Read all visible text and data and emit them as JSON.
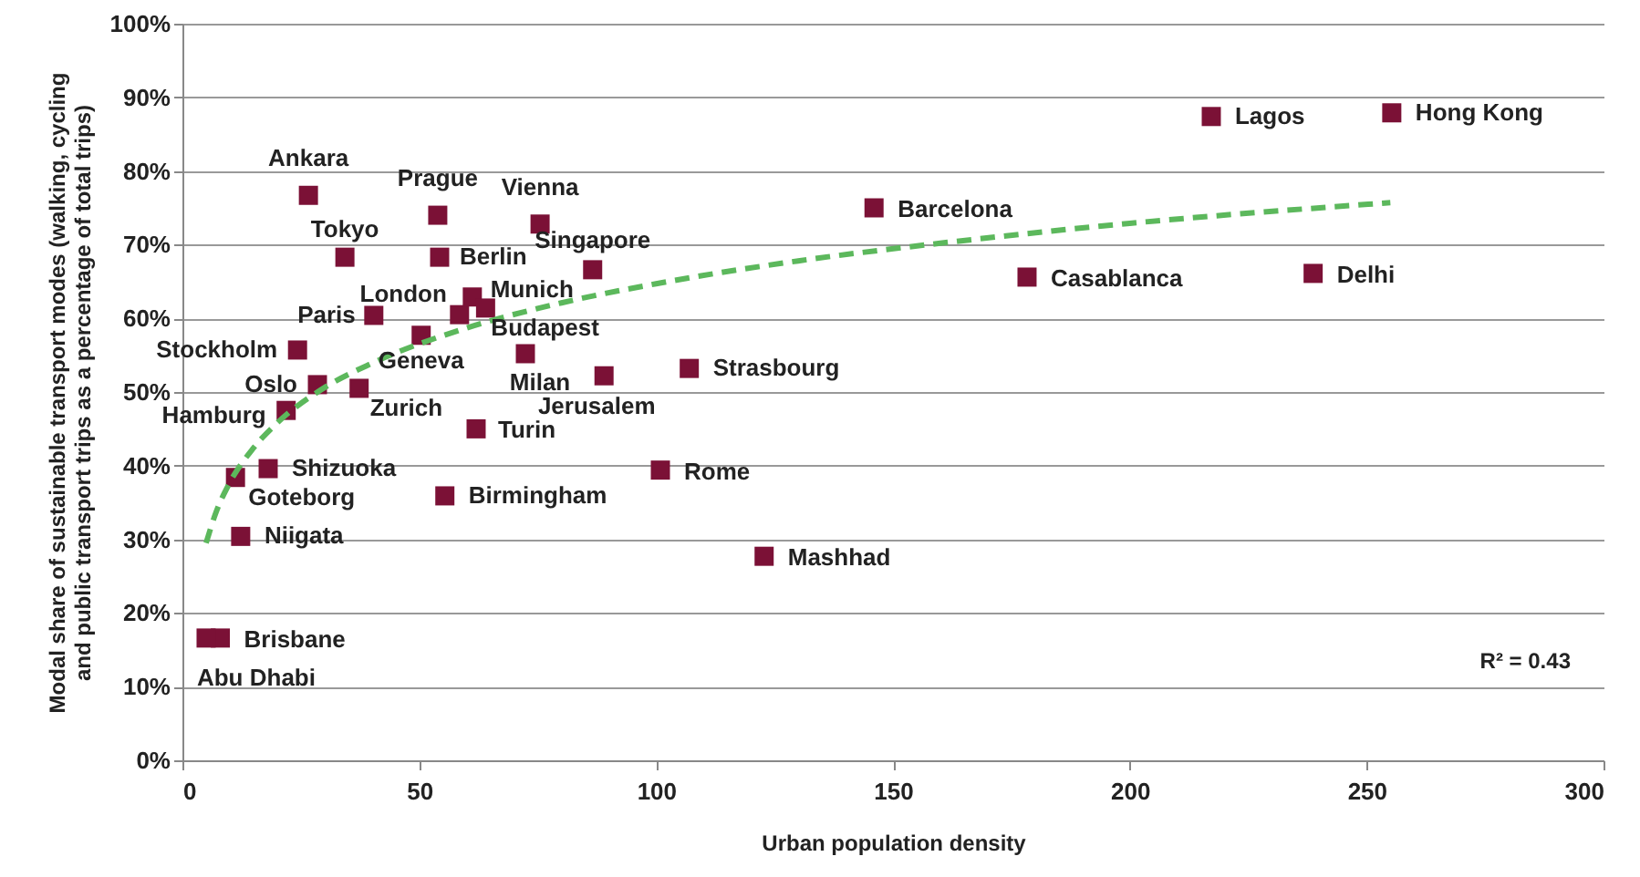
{
  "chart_data": {
    "type": "scatter",
    "xlabel": "Urban population density",
    "ylabel": "Modal share of sustainable transport modes (walking, cycling and public transport trips as a percentage of total trips)",
    "xlim": [
      0,
      300
    ],
    "xticks": [
      0,
      50,
      100,
      150,
      200,
      250,
      300
    ],
    "ylim": [
      0,
      100
    ],
    "yticks": [
      {
        "value": 0,
        "label": "0%"
      },
      {
        "value": 10,
        "label": "10%"
      },
      {
        "value": 20,
        "label": "20%"
      },
      {
        "value": 30,
        "label": "30%"
      },
      {
        "value": 40,
        "label": "40%"
      },
      {
        "value": 50,
        "label": "50%"
      },
      {
        "value": 60,
        "label": "60%"
      },
      {
        "value": 70,
        "label": "70%"
      },
      {
        "value": 80,
        "label": "80%"
      },
      {
        "value": 90,
        "label": "90%"
      },
      {
        "value": 100,
        "label": "100%"
      }
    ],
    "grid": "y",
    "series": [
      {
        "marker": "square",
        "color": "#7b1136",
        "x": [
          26.6,
          53.9,
          75.5,
          34.3,
          54.3,
          86.6,
          58.5,
          61.2,
          64.0,
          40.4,
          50.4,
          24.3,
          72.4,
          89.0,
          28.5,
          37.3,
          21.9,
          62.0,
          107.0,
          18.1,
          11.2,
          100.9,
          55.4,
          12.3,
          8.0,
          5.0,
          122.8,
          146.0,
          178.3,
          238.7,
          217.2,
          255.3
        ],
        "values": [
          76.7,
          74.0,
          72.8,
          68.3,
          68.3,
          66.6,
          60.5,
          62.9,
          61.4,
          60.4,
          57.7,
          55.7,
          55.2,
          52.2,
          51.0,
          50.5,
          47.5,
          45.0,
          53.2,
          39.6,
          38.4,
          39.4,
          35.9,
          30.4,
          16.6,
          16.6,
          27.7,
          75.0,
          65.6,
          66.1,
          87.4,
          87.9
        ]
      },
      {
        "type": "line",
        "line_style": "dashed",
        "color": "#5cb85c",
        "x": [
          5,
          7,
          10,
          15,
          20,
          30,
          40,
          60,
          80,
          100,
          130,
          160,
          200,
          255
        ],
        "values": [
          29.5,
          33.5,
          37.7,
          42.4,
          45.8,
          50.6,
          53.9,
          58.7,
          62.1,
          64.7,
          67.8,
          70.2,
          72.9,
          75.7
        ]
      }
    ],
    "annotations": [
      "R² = 0.43",
      {
        "text": "Ankara",
        "x": 26.6,
        "y": 76.7
      },
      {
        "text": "Prague",
        "x": 53.9,
        "y": 74.0
      },
      {
        "text": "Vienna",
        "x": 75.5,
        "y": 72.8
      },
      {
        "text": "Tokyo",
        "x": 34.3,
        "y": 68.3
      },
      {
        "text": "Berlin",
        "x": 54.3,
        "y": 68.3
      },
      {
        "text": "Singapore",
        "x": 86.6,
        "y": 66.6
      },
      {
        "text": "London",
        "x": 58.5,
        "y": 60.5
      },
      {
        "text": "Munich",
        "x": 61.2,
        "y": 62.9
      },
      {
        "text": "Budapest",
        "x": 64.0,
        "y": 61.4
      },
      {
        "text": "Paris",
        "x": 40.4,
        "y": 60.4
      },
      {
        "text": "Geneva",
        "x": 50.4,
        "y": 57.7
      },
      {
        "text": "Stockholm",
        "x": 24.3,
        "y": 55.7
      },
      {
        "text": "Milan",
        "x": 72.4,
        "y": 55.2
      },
      {
        "text": "Jerusalem",
        "x": 89.0,
        "y": 52.2
      },
      {
        "text": "Oslo",
        "x": 28.5,
        "y": 51.0
      },
      {
        "text": "Zurich",
        "x": 37.3,
        "y": 50.5
      },
      {
        "text": "Hamburg",
        "x": 21.9,
        "y": 47.5
      },
      {
        "text": "Turin",
        "x": 62.0,
        "y": 45.0
      },
      {
        "text": "Strasbourg",
        "x": 107.0,
        "y": 53.2
      },
      {
        "text": "Shizuoka",
        "x": 18.1,
        "y": 39.6
      },
      {
        "text": "Goteborg",
        "x": 11.2,
        "y": 38.4
      },
      {
        "text": "Rome",
        "x": 100.9,
        "y": 39.4
      },
      {
        "text": "Birmingham",
        "x": 55.4,
        "y": 35.9
      },
      {
        "text": "Niigata",
        "x": 12.3,
        "y": 30.4
      },
      {
        "text": "Brisbane",
        "x": 8.0,
        "y": 16.6
      },
      {
        "text": "Abu Dhabi",
        "x": 5.0,
        "y": 16.6
      },
      {
        "text": "Mashhad",
        "x": 122.8,
        "y": 27.7
      },
      {
        "text": "Barcelona",
        "x": 146.0,
        "y": 75.0
      },
      {
        "text": "Casablanca",
        "x": 178.3,
        "y": 65.6
      },
      {
        "text": "Delhi",
        "x": 238.7,
        "y": 66.1
      },
      {
        "text": "Lagos",
        "x": 217.2,
        "y": 87.4
      },
      {
        "text": "Hong Kong",
        "x": 255.3,
        "y": 87.9
      }
    ]
  }
}
